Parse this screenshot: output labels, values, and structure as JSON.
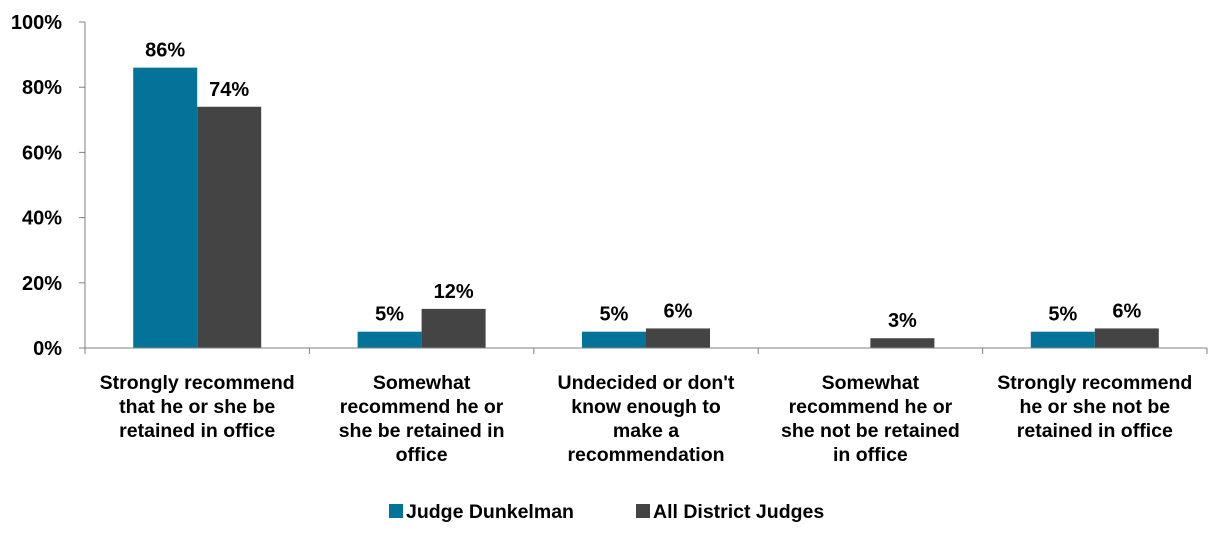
{
  "chart_data": {
    "type": "bar",
    "title": "",
    "xlabel": "",
    "ylabel": "",
    "ylim": [
      0,
      100
    ],
    "yticks": [
      0,
      20,
      40,
      60,
      80,
      100
    ],
    "ytick_labels": [
      "0%",
      "20%",
      "40%",
      "60%",
      "80%",
      "100%"
    ],
    "categories": [
      "Strongly recommend that he or she be retained in office",
      "Somewhat recommend he or she be retained in office",
      "Undecided or don't know enough to make a recommendation",
      "Somewhat recommend he or she not be retained in office",
      "Strongly recommend he or she not be retained in office"
    ],
    "category_lines": [
      [
        "Strongly recommend",
        "that he or she be",
        "retained in office"
      ],
      [
        "Somewhat",
        "recommend he or",
        "she be retained in",
        "office"
      ],
      [
        "Undecided or don't",
        "know enough to",
        "make a",
        "recommendation"
      ],
      [
        "Somewhat",
        "recommend he or",
        "she not be retained",
        "in office"
      ],
      [
        "Strongly recommend",
        "he or she not be",
        "retained in office"
      ]
    ],
    "series": [
      {
        "name": "Judge Dunkelman",
        "color": "#04739A",
        "values": [
          86,
          5,
          null,
          null,
          5
        ],
        "labels": [
          "86%",
          "5%",
          "5%",
          "",
          "5%"
        ],
        "bar_values": [
          86,
          5,
          5,
          0,
          5
        ]
      },
      {
        "name": "All District Judges",
        "color": "#444444",
        "values": [
          74,
          12,
          6,
          3,
          6
        ],
        "labels": [
          "74%",
          "12%",
          "6%",
          "3%",
          "6%"
        ],
        "bar_values": [
          74,
          12,
          6,
          3,
          6
        ]
      }
    ],
    "grid": false,
    "legend": "bottom-center"
  }
}
